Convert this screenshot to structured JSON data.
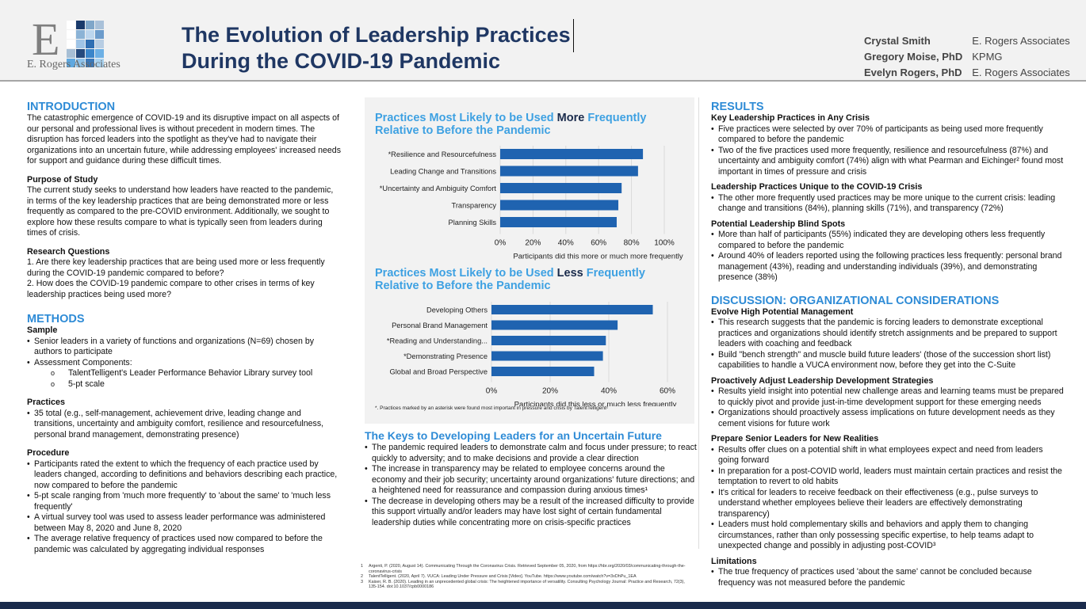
{
  "header": {
    "logo_letter": "E",
    "logo_text": "E. Rogers Associates",
    "title_line1": "The Evolution of Leadership Practices",
    "title_line2": "During the COVID-19 Pandemic",
    "authors": [
      {
        "name": "Crystal Smith",
        "affiliation": "E. Rogers Associates"
      },
      {
        "name": "Gregory Moise, PhD",
        "affiliation": "KPMG"
      },
      {
        "name": "Evelyn Rogers, PhD",
        "affiliation": "E. Rogers Associates"
      }
    ]
  },
  "intro": {
    "heading": "INTRODUCTION",
    "text": "The catastrophic emergence of COVID-19 and its disruptive impact on all aspects of our personal and professional lives is without precedent in modern times. The disruption has forced leaders into the spotlight as they've had to navigate their organizations into an uncertain future, while addressing employees' increased needs for support and guidance during these difficult times.",
    "purpose_heading": "Purpose of Study",
    "purpose_text": "The current study seeks to understand how leaders have reacted to the pandemic, in terms of the key leadership practices that are being demonstrated more or less frequently as compared to the pre-COVID environment. Additionally, we sought to explore how these results compare to what is typically seen from leaders during times of crisis.",
    "rq_heading": "Research Questions",
    "questions": [
      "1. Are there key leadership practices that are being used more or less frequently during the COVID-19 pandemic compared to before?",
      "2. How does the COVID-19 pandemic compare to other crises in terms of key leadership practices being used more?"
    ]
  },
  "methods": {
    "heading": "METHODS",
    "sample_heading": "Sample",
    "sample_bullets": [
      "Senior leaders in a variety of functions and organizations (N=69) chosen by authors to participate",
      "Assessment Components:"
    ],
    "sample_sub": [
      "TalentTelligent's Leader Performance Behavior Library survey tool",
      "5-pt scale"
    ],
    "practices_heading": "Practices",
    "practices_bullets": [
      "35 total (e.g., self-management, achievement drive, leading change and transitions, uncertainty and ambiguity comfort, resilience and resourcefulness, personal brand management, demonstrating presence)"
    ],
    "procedure_heading": "Procedure",
    "procedure_bullets": [
      "Participants rated the extent to which the frequency of each practice used by leaders changed, according to definitions and behaviors describing each practice, now compared to before the pandemic",
      "5-pt scale ranging from 'much more frequently' to 'about the same' to 'much less frequently'",
      "A virtual survey tool was used to assess leader performance was administered between May 8, 2020 and June 8, 2020",
      "The average relative frequency of practices used now compared to before the pandemic was calculated by aggregating individual responses"
    ]
  },
  "chart_data": [
    {
      "type": "bar",
      "orientation": "horizontal",
      "title_pre": "Practices Most Likely to be Used ",
      "title_em": "More",
      "title_post": " Frequently Relative to Before the Pandemic",
      "categories": [
        "*Resilience and Resourcefulness",
        "Leading Change and Transitions",
        "*Uncertainty and Ambiguity Comfort",
        "Transparency",
        "Planning Skills"
      ],
      "values": [
        87,
        84,
        74,
        72,
        71
      ],
      "xlabel": "Participants did this more or much more frequently",
      "xlim": [
        0,
        100
      ],
      "ticks": [
        "0%",
        "20%",
        "40%",
        "60%",
        "80%",
        "100%"
      ],
      "grid": true,
      "bar_color": "#1f63b0"
    },
    {
      "type": "bar",
      "orientation": "horizontal",
      "title_pre": "Practices Most Likely to be Used ",
      "title_em": "Less",
      "title_post": " Frequently Relative to Before the Pandemic",
      "categories": [
        "Developing Others",
        "Personal Brand Management",
        "*Reading and Understanding...",
        "*Demonstrating Presence",
        "Global and Broad Perspective"
      ],
      "values": [
        55,
        43,
        39,
        38,
        35
      ],
      "xlabel": "Participants did this less or much less frequently",
      "xlim": [
        0,
        60
      ],
      "ticks": [
        "0%",
        "20%",
        "40%",
        "60%"
      ],
      "grid": true,
      "bar_color": "#1f63b0"
    }
  ],
  "chart_note": "*. Practices marked by an asterisk were found most important in pressure and crisis by TalentTelligent²",
  "keys": {
    "heading": "The Keys to Developing Leaders for an Uncertain Future",
    "bullets": [
      "The pandemic required leaders to demonstrate calm and focus under pressure; to react quickly to adversity; and to make decisions and provide a clear direction",
      "The increase in transparency may be related to employee concerns around the economy and their job security; uncertainty around organizations' future directions; and a heightened need for reassurance and compassion during anxious times¹",
      "The decrease in developing others may be a result of the increased difficulty to provide this support virtually and/or leaders may have lost sight of certain fundamental leadership duties while concentrating more on crisis-specific practices"
    ]
  },
  "footnotes": [
    {
      "num": "1",
      "text": "Argenti, P. (2020, August 14). Communicating Through the Coronavirus Crisis. Retrieved September 05, 2020, from https://hbr.org/2020/03/communicating-through-the-coronavirus-crisis"
    },
    {
      "num": "2",
      "text": "TalentTelligent. (2020, April 7). VUCA: Leading Under Pressure and Crisis [Video]. YouTube. https://www.youtube.com/watch?v=3xDhPu_1EA"
    },
    {
      "num": "3",
      "text": "Kaiser, R. B. (2020). Leading in an unprecedented global crisis: The heightened importance of versatility. Consulting Psychology Journal: Practice and Research, 72(3), 135-154. doi:10.1037/cpb0000186"
    }
  ],
  "results": {
    "heading": "RESULTS",
    "sections": [
      {
        "heading": "Key Leadership Practices in Any Crisis",
        "bullets": [
          "Five practices were selected by over 70% of participants as being used more frequently compared to before the pandemic",
          "Two of the five practices used more frequently, resilience and resourcefulness (87%) and uncertainty and ambiguity comfort (74%) align with what Pearman and Eichinger² found most important in times of pressure and crisis"
        ]
      },
      {
        "heading": "Leadership Practices Unique to the COVID-19 Crisis",
        "bullets": [
          "The other more frequently used practices may be more unique to the current crisis: leading change and transitions (84%), planning skills (71%), and transparency (72%)"
        ]
      },
      {
        "heading": "Potential Leadership Blind Spots",
        "bullets": [
          "More than half of participants (55%) indicated they are developing others less frequently compared to before the pandemic",
          "Around 40% of leaders reported using the following practices less frequently: personal brand management (43%), reading and understanding individuals (39%), and demonstrating presence (38%)"
        ]
      }
    ]
  },
  "discussion": {
    "heading": "DISCUSSION: ORGANIZATIONAL CONSIDERATIONS",
    "sections": [
      {
        "heading": "Evolve High Potential Management",
        "bullets": [
          "This research suggests that the pandemic is forcing leaders to demonstrate exceptional practices and organizations should identify stretch assignments and be prepared to support leaders with coaching and feedback",
          "Build \"bench strength\" and muscle build future leaders' (those of the succession short list) capabilities to handle a VUCA environment now, before they get into the C-Suite"
        ]
      },
      {
        "heading": "Proactively Adjust Leadership Development Strategies",
        "bullets": [
          "Results yield insight into potential new challenge areas and learning teams must be prepared to quickly pivot and provide just-in-time development support for these emerging needs",
          "Organizations should proactively assess implications on future development needs as they cement visions for future work"
        ]
      },
      {
        "heading": "Prepare Senior Leaders for New Realities",
        "bullets": [
          "Results offer clues on a potential shift in what employees expect and need from leaders going forward",
          "In preparation for a post-COVID world, leaders must maintain certain practices and resist the temptation to revert to old habits",
          "It's critical for leaders to receive feedback on their effectiveness (e.g., pulse surveys to understand whether employees believe their leaders are effectively demonstrating transparency)",
          "Leaders must hold complementary skills and behaviors and apply them to changing circumstances, rather than only possessing specific expertise, to help teams adapt to unexpected change and possibly in adjusting post-COVID³"
        ]
      },
      {
        "heading": "Limitations",
        "bullets": [
          "The true frequency of practices used 'about the same' cannot be concluded because frequency was not measured before the pandemic"
        ]
      }
    ]
  }
}
